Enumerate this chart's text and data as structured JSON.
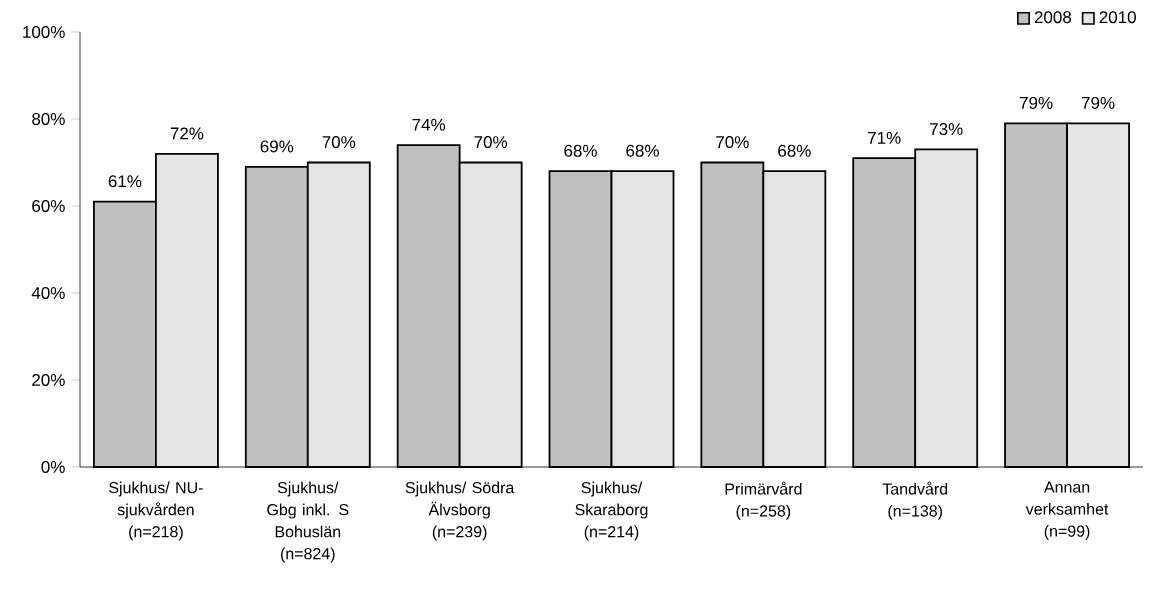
{
  "chart_data": {
    "type": "bar",
    "categories": [
      "Sjukhus/ NU-sjukvården (n=218)",
      "Sjukhus/ Gbg inkl. S Bohuslän (n=824)",
      "Sjukhus/ Södra Älvsborg (n=239)",
      "Sjukhus/ Skaraborg (n=214)",
      "Primärvård (n=258)",
      "Tandvård (n=138)",
      "Annan verksamhet (n=99)"
    ],
    "series": [
      {
        "name": "2008",
        "color": "#c0c0c0",
        "values": [
          61,
          69,
          74,
          68,
          70,
          71,
          79
        ],
        "value_labels": [
          "61%",
          "69%",
          "74%",
          "68%",
          "70%",
          "71%",
          "79%"
        ]
      },
      {
        "name": "2010",
        "color": "#e4e4e4",
        "values": [
          72,
          70,
          70,
          68,
          68,
          73,
          79
        ],
        "value_labels": [
          "72%",
          "70%",
          "70%",
          "68%",
          "68%",
          "73%",
          "79%"
        ]
      }
    ],
    "ylim": [
      0,
      100
    ],
    "yticks": [
      {
        "value": 0,
        "label": "0%"
      },
      {
        "value": 20,
        "label": "20%"
      },
      {
        "value": 40,
        "label": "40%"
      },
      {
        "value": 60,
        "label": "60%"
      },
      {
        "value": 80,
        "label": "80%"
      },
      {
        "value": 100,
        "label": "100%"
      }
    ],
    "legend": "top right",
    "grid": false
  }
}
